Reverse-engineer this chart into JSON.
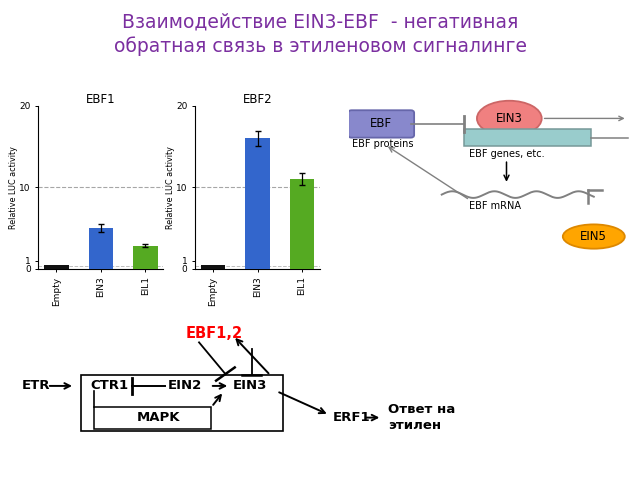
{
  "title": "Взаимодействие EIN3-EBF  - негативная\nобратная связь в этиленовом сигналинге",
  "title_color": "#7B2FA0",
  "title_fontsize": 13.5,
  "bg_color": "#FFFFFF",
  "chart1_title": "EBF1",
  "chart1_values": [
    0.45,
    5.0,
    2.8
  ],
  "chart1_colors": [
    "#111111",
    "#3366CC",
    "#55AA22"
  ],
  "chart1_errors": [
    0.04,
    0.45,
    0.18
  ],
  "chart2_title": "EBF2",
  "chart2_values": [
    0.45,
    16.0,
    11.0
  ],
  "chart2_colors": [
    "#111111",
    "#3366CC",
    "#55AA22"
  ],
  "chart2_errors": [
    0.04,
    0.9,
    0.7
  ],
  "categories": [
    "Empty",
    "EIN3",
    "EIL1"
  ],
  "ylabel": "Relative LUC activity",
  "yticks": [
    0,
    1,
    10,
    20
  ],
  "ylim": [
    0,
    20
  ]
}
